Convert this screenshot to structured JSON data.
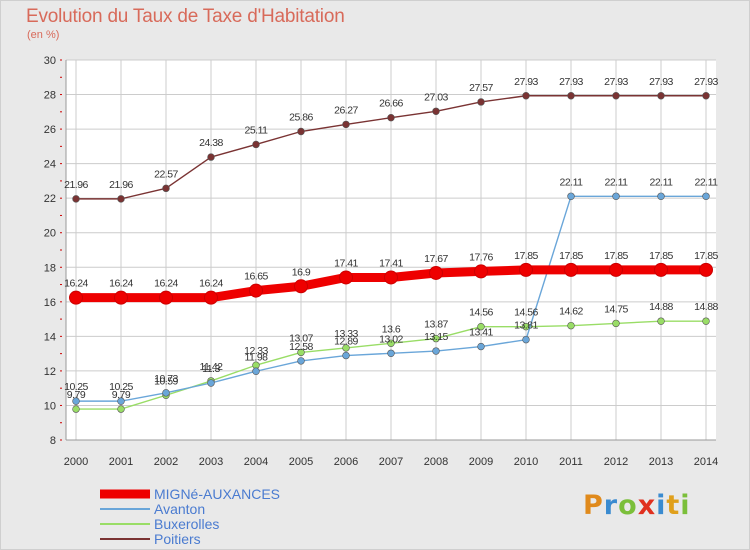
{
  "title": "Evolution du Taux de Taxe d'Habitation",
  "unit_label": "(en %)",
  "logo": {
    "text": "Proxiti",
    "colors": [
      "#e08a1c",
      "#3a8bd0",
      "#7bbf3a",
      "#e0301e",
      "#3a8bd0",
      "#e0a01c",
      "#7bbf3a"
    ]
  },
  "chart_data": {
    "type": "line",
    "title": "Evolution du Taux de Taxe d'Habitation",
    "ylabel": "(en %)",
    "xlabel": "",
    "x": [
      2000,
      2001,
      2002,
      2003,
      2004,
      2005,
      2006,
      2007,
      2008,
      2009,
      2010,
      2011,
      2012,
      2013,
      2014
    ],
    "ylim": [
      8,
      30
    ],
    "yticks": [
      8,
      10,
      12,
      14,
      16,
      18,
      20,
      22,
      24,
      26,
      28,
      30
    ],
    "grid": true,
    "legend_position": "bottom-left",
    "series": [
      {
        "name": "MIGNé-AUXANCES",
        "color": "#ee0000",
        "values": [
          16.24,
          16.24,
          16.24,
          16.24,
          16.65,
          16.9,
          17.41,
          17.41,
          17.67,
          17.76,
          17.85,
          17.85,
          17.85,
          17.85,
          17.85
        ],
        "labels": [
          "16.24",
          "16.24",
          "16.24",
          "16.24",
          "16.65",
          "16.9",
          "17.41",
          "17.41",
          "17.67",
          "17.76",
          "17.85",
          "17.85",
          "17.85",
          "17.85",
          "17.85"
        ]
      },
      {
        "name": "Avanton",
        "color": "#6aa6d9",
        "values": [
          10.25,
          10.25,
          10.73,
          11.3,
          11.98,
          12.58,
          12.89,
          13.02,
          13.15,
          13.41,
          13.81,
          22.11,
          22.11,
          22.11,
          22.11
        ],
        "labels": [
          "10.25",
          "10.25",
          "10.73",
          "11.3",
          "11.98",
          "12.58",
          "12.89",
          "13.02",
          "13.15",
          "13.41",
          "13.81",
          "22.11",
          "22.11",
          "22.11",
          "22.11"
        ]
      },
      {
        "name": "Buxerolles",
        "color": "#99dd66",
        "values": [
          9.79,
          9.79,
          10.59,
          11.42,
          12.33,
          13.07,
          13.33,
          13.6,
          13.87,
          14.56,
          14.56,
          14.62,
          14.75,
          14.88,
          14.88
        ],
        "labels": [
          "9.79",
          "9.79",
          "10.59",
          "11.42",
          "12.33",
          "13.07",
          "13.33",
          "13.6",
          "13.87",
          "14.56",
          "14.56",
          "14.62",
          "14.75",
          "14.88",
          "14.88"
        ]
      },
      {
        "name": "Poitiers",
        "color": "#7a3333",
        "values": [
          21.96,
          21.96,
          22.57,
          24.38,
          25.11,
          25.86,
          26.27,
          26.66,
          27.03,
          27.57,
          27.93,
          27.93,
          27.93,
          27.93,
          27.93
        ],
        "labels": [
          "21.96",
          "21.96",
          "22.57",
          "24.38",
          "25.11",
          "25.86",
          "26.27",
          "26.66",
          "27.03",
          "27.57",
          "27.93",
          "27.93",
          "27.93",
          "27.93",
          "27.93"
        ]
      }
    ]
  }
}
